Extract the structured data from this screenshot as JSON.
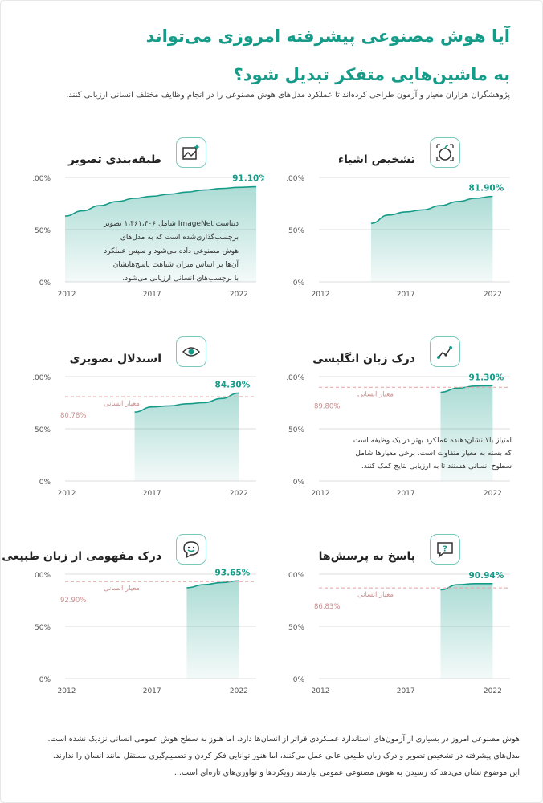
{
  "header": {
    "title_line1": "آیا هوش مصنوعی پیشرفته امروزی می‌تواند",
    "title_line2": "به ماشین‌هایی متفکر تبدیل شود؟",
    "intro": "پژوهشگران هزاران معیار و آزمون طراحی کرده‌اند تا عملکرد مدل‌های هوش مصنوعی را در انجام وظایف مختلف انسانی ارزیابی کنند."
  },
  "colors": {
    "accent": "#159b88",
    "fill": "#dff1ec",
    "human_line": "#e6a2a2",
    "human_text": "#c98e8e",
    "grid": "#dddddd"
  },
  "axis": {
    "y_ticks": [
      "100%",
      "50%",
      "0%"
    ],
    "x_ticks": [
      "2012",
      "2017",
      "2022"
    ]
  },
  "human_label": "معیار انسانی",
  "chart_data": [
    {
      "type": "area",
      "title": "طبقه‌بندی تصویر",
      "icon": "image-sparkle-icon",
      "x": [
        2012,
        2013,
        2014,
        2015,
        2016,
        2017,
        2018,
        2019,
        2020,
        2021,
        2022,
        2023
      ],
      "y": [
        63,
        68,
        73,
        77,
        80,
        82,
        84,
        86,
        88,
        89.5,
        90.5,
        91.1
      ],
      "final_label": "91.10%",
      "ylim": [
        0,
        100
      ]
    },
    {
      "type": "area",
      "title": "تشخیص اشیاء",
      "icon": "apple-icon",
      "x": [
        2015,
        2016,
        2017,
        2018,
        2019,
        2020,
        2021,
        2022
      ],
      "y": [
        56,
        64,
        67,
        69,
        73,
        77,
        80,
        81.9
      ],
      "final_label": "81.90%",
      "ylim": [
        0,
        100
      ]
    },
    {
      "type": "area",
      "title": "استدلال تصویری",
      "icon": "eye-icon",
      "x": [
        2016,
        2017,
        2018,
        2019,
        2020,
        2021,
        2022
      ],
      "y": [
        66,
        71,
        72,
        74,
        75,
        79,
        84.3
      ],
      "final_label": "84.30%",
      "human": 80.78,
      "human_label": "80.78%",
      "ylim": [
        0,
        100
      ]
    },
    {
      "type": "area",
      "title": "درک زبان انگلیسی",
      "icon": "brain-circuit-icon",
      "x": [
        2019,
        2020,
        2021,
        2022
      ],
      "y": [
        85,
        89,
        91,
        91.3
      ],
      "final_label": "91.30%",
      "human": 89.8,
      "human_label": "89.80%",
      "ylim": [
        0,
        100
      ]
    },
    {
      "type": "area",
      "title": "درک مفهومی از زبان طبیعی",
      "icon": "chat-smile-icon",
      "x": [
        2019,
        2020,
        2021,
        2022
      ],
      "y": [
        87,
        90,
        92,
        93.65
      ],
      "final_label": "93.65%",
      "human": 92.9,
      "human_label": "92.90%",
      "ylim": [
        0,
        100
      ]
    },
    {
      "type": "area",
      "title": "پاسخ به پرسش‌ها",
      "icon": "question-bubble-icon",
      "x": [
        2019,
        2020,
        2021,
        2022
      ],
      "y": [
        85,
        90,
        90.94,
        90.94
      ],
      "final_label": "90.94%",
      "human": 86.83,
      "human_label": "86.83%",
      "ylim": [
        0,
        100
      ]
    }
  ],
  "notes": {
    "imagenet": [
      "دیتاست ImageNet شامل ۱،۴۶۱،۴۰۶ تصویر",
      "برچسب‌گذاری‌شده است که به مدل‌های",
      "هوش مصنوعی داده می‌شود و  سپس عملکرد",
      "آن‌ها بر اساس میزان  شباهت پاسخ‌هایشان",
      "با برچسب‌های انسانی ارزیابی می‌شود."
    ],
    "score": [
      "امتیاز بالا نشان‌دهنده عملکرد بهتر در یک وظیفه است",
      "که بسته به معیار متفاوت است. برخی معیارها شامل",
      "سطوح انسانی هستند تا به ارزیابی نتایج کمک کنند."
    ]
  },
  "footer": [
    "هوش مصنوعی امروز در بسیاری از آزمون‌های استاندارد عملکردی فراتر از انسان‌ها دارد، اما  هنوز به سطح هوش عمومی انسانی نزدیک نشده است.",
    "مدل‌های پیشرفته در تشخیص تصویر و درک زبان طبیعی عالی عمل می‌کنند، اما هنوز توانایی فکر کردن و تصمیم‌گیری مستقل مانند انسان را ندارند.",
    "این موضوع نشان می‌دهد که رسیدن به هوش مصنوعی عمومی نیازمند رویکردها و نوآوری‌های تازه‌ای است..."
  ]
}
